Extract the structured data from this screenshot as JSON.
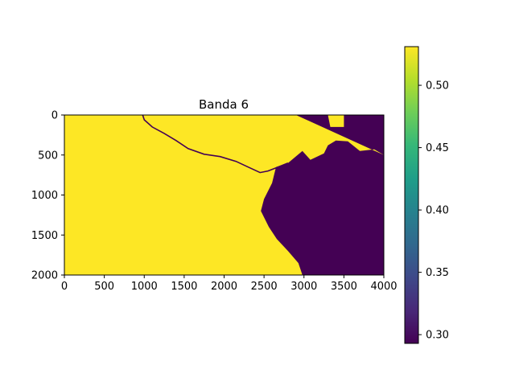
{
  "chart_data": {
    "type": "heatmap",
    "title": "Banda 6",
    "xlabel": "",
    "ylabel": "",
    "xlim": [
      0,
      4000
    ],
    "ylim": [
      2000,
      0
    ],
    "x_ticks": [
      0,
      500,
      1000,
      1500,
      2000,
      2500,
      3000,
      3500,
      4000
    ],
    "y_ticks": [
      0,
      500,
      1000,
      1500,
      2000
    ],
    "colormap": "viridis",
    "colorbar": {
      "range": [
        0.293,
        0.531
      ],
      "ticks": [
        "0.30",
        "0.35",
        "0.40",
        "0.45",
        "0.50"
      ],
      "tick_values": [
        0.3,
        0.35,
        0.4,
        0.45,
        0.5
      ]
    },
    "high_value": 0.531,
    "low_value": 0.293,
    "high_color": "#fde725",
    "low_color": "#440154",
    "water_region_outline": [
      [
        2900,
        0
      ],
      [
        3300,
        0
      ],
      [
        3330,
        150
      ],
      [
        3500,
        150
      ],
      [
        3500,
        0
      ],
      [
        4000,
        0
      ],
      [
        4000,
        500
      ],
      [
        3880,
        430
      ],
      [
        3700,
        450
      ],
      [
        3550,
        330
      ],
      [
        3400,
        320
      ],
      [
        3300,
        380
      ],
      [
        3250,
        480
      ],
      [
        3080,
        560
      ],
      [
        2980,
        450
      ],
      [
        2800,
        600
      ],
      [
        2650,
        650
      ],
      [
        2600,
        850
      ],
      [
        2500,
        1050
      ],
      [
        2460,
        1200
      ],
      [
        2560,
        1400
      ],
      [
        2660,
        1550
      ],
      [
        2800,
        1700
      ],
      [
        2930,
        1850
      ],
      [
        2980,
        2000
      ],
      [
        4000,
        2000
      ],
      [
        4000,
        500
      ]
    ],
    "channel": [
      [
        980,
        0
      ],
      [
        1000,
        60
      ],
      [
        1100,
        150
      ],
      [
        1250,
        230
      ],
      [
        1400,
        320
      ],
      [
        1550,
        420
      ],
      [
        1750,
        490
      ],
      [
        1950,
        520
      ],
      [
        2150,
        580
      ],
      [
        2300,
        650
      ],
      [
        2450,
        720
      ],
      [
        2550,
        700
      ],
      [
        2650,
        660
      ],
      [
        2800,
        600
      ]
    ],
    "grid": false
  }
}
